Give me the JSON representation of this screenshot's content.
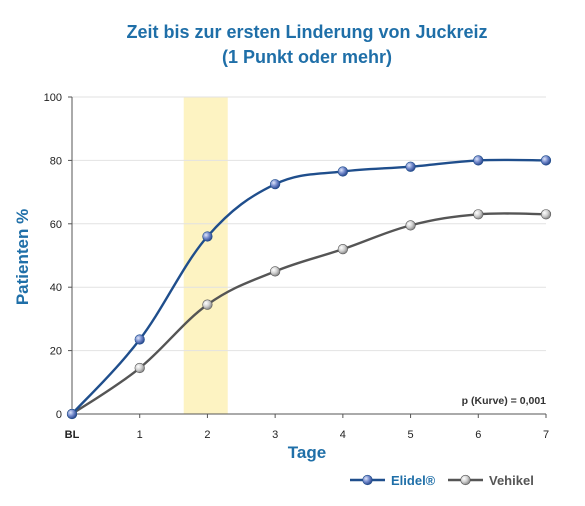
{
  "chart_data": {
    "type": "line",
    "title_lines": [
      "Zeit bis zur ersten Linderung von Juckreiz",
      "(1 Punkt oder mehr)"
    ],
    "xlabel": "Tage",
    "ylabel": "Patienten %",
    "x_tick_labels": [
      "BL",
      "1",
      "2",
      "3",
      "4",
      "5",
      "6",
      "7"
    ],
    "x": [
      0,
      1,
      2,
      3,
      4,
      5,
      6,
      7
    ],
    "xlim": [
      0,
      7
    ],
    "ylim": [
      0,
      100
    ],
    "y_ticks": [
      0,
      20,
      40,
      60,
      80,
      100
    ],
    "grid": "horizontal",
    "highlight_band": [
      1.65,
      2.3
    ],
    "highlight_color": "#fdf3c2",
    "annotation": "p (Kurve) = 0,001",
    "legend_position": "bottom-right",
    "series": [
      {
        "name": "Elidel®",
        "color": "#1f4e8c",
        "marker_color": "#6f86c9",
        "x": [
          0,
          1,
          2,
          3,
          4,
          5,
          6,
          7
        ],
        "values": [
          0,
          23.5,
          56,
          72.5,
          76.5,
          78,
          80,
          80
        ]
      },
      {
        "name": "Vehikel",
        "color": "#555555",
        "marker_color": "#c4c4c4",
        "x": [
          0,
          1,
          2,
          3,
          4,
          5,
          6,
          7
        ],
        "values": [
          0,
          14.5,
          34.5,
          45,
          52,
          59.5,
          63,
          63
        ]
      }
    ]
  }
}
